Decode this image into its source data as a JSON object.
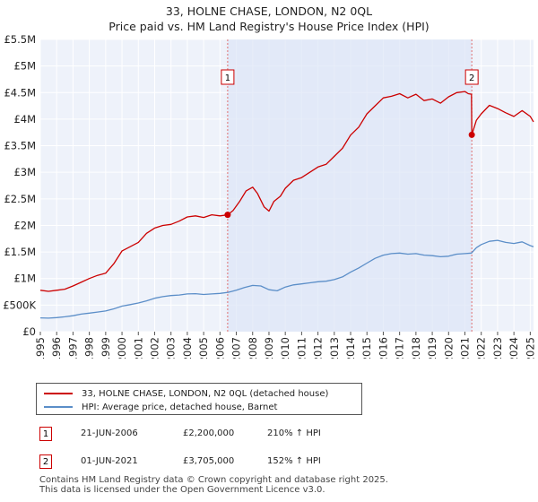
{
  "chart_data": {
    "type": "line",
    "title": "33, HOLNE CHASE, LONDON, N2 0QL",
    "subtitle": "Price paid vs. HM Land Registry's House Price Index (HPI)",
    "xlabel": "",
    "ylabel": "",
    "xlim": [
      1995,
      2025.2
    ],
    "ylim": [
      0,
      5500000
    ],
    "y_ticks": [
      {
        "value": 0,
        "label": "£0"
      },
      {
        "value": 500000,
        "label": "£500K"
      },
      {
        "value": 1000000,
        "label": "£1M"
      },
      {
        "value": 1500000,
        "label": "£1.5M"
      },
      {
        "value": 2000000,
        "label": "£2M"
      },
      {
        "value": 2500000,
        "label": "£2.5M"
      },
      {
        "value": 3000000,
        "label": "£3M"
      },
      {
        "value": 3500000,
        "label": "£3.5M"
      },
      {
        "value": 4000000,
        "label": "£4M"
      },
      {
        "value": 4500000,
        "label": "£4.5M"
      },
      {
        "value": 5000000,
        "label": "£5M"
      },
      {
        "value": 5500000,
        "label": "£5.5M"
      }
    ],
    "x_ticks": [
      "1995",
      "1996",
      "1997",
      "1998",
      "1999",
      "2000",
      "2001",
      "2002",
      "2003",
      "2004",
      "2005",
      "2006",
      "2007",
      "2008",
      "2009",
      "2010",
      "2011",
      "2012",
      "2013",
      "2014",
      "2015",
      "2016",
      "2017",
      "2018",
      "2019",
      "2020",
      "2021",
      "2022",
      "2023",
      "2024",
      "2025"
    ],
    "grid": true,
    "shaded_region": [
      2006.47,
      2021.42
    ],
    "series": [
      {
        "name": "33, HOLNE CHASE, LONDON, N2 0QL (detached house)",
        "color": "#cc0000",
        "x": [
          1995.0,
          1995.5,
          1996.0,
          1996.5,
          1997.0,
          1997.5,
          1998.0,
          1998.5,
          1999.0,
          1999.5,
          2000.0,
          2000.5,
          2001.0,
          2001.5,
          2002.0,
          2002.5,
          2003.0,
          2003.5,
          2004.0,
          2004.5,
          2005.0,
          2005.5,
          2006.0,
          2006.47,
          2006.8,
          2007.2,
          2007.6,
          2008.0,
          2008.3,
          2008.7,
          2009.0,
          2009.3,
          2009.7,
          2010.0,
          2010.5,
          2011.0,
          2011.5,
          2012.0,
          2012.5,
          2013.0,
          2013.5,
          2014.0,
          2014.5,
          2015.0,
          2015.5,
          2016.0,
          2016.5,
          2017.0,
          2017.5,
          2018.0,
          2018.5,
          2019.0,
          2019.5,
          2020.0,
          2020.5,
          2021.0,
          2021.2,
          2021.4,
          2021.42,
          2021.7,
          2022.0,
          2022.5,
          2023.0,
          2023.5,
          2024.0,
          2024.5,
          2025.0,
          2025.2
        ],
        "y": [
          780000,
          760000,
          780000,
          800000,
          860000,
          930000,
          1000000,
          1060000,
          1100000,
          1280000,
          1520000,
          1600000,
          1680000,
          1850000,
          1950000,
          2000000,
          2020000,
          2080000,
          2160000,
          2180000,
          2150000,
          2200000,
          2180000,
          2200000,
          2280000,
          2450000,
          2650000,
          2720000,
          2600000,
          2350000,
          2270000,
          2450000,
          2550000,
          2700000,
          2850000,
          2900000,
          3000000,
          3100000,
          3150000,
          3300000,
          3450000,
          3700000,
          3850000,
          4100000,
          4250000,
          4400000,
          4430000,
          4480000,
          4400000,
          4470000,
          4350000,
          4380000,
          4300000,
          4420000,
          4500000,
          4520000,
          4480000,
          4470000,
          3705000,
          3980000,
          4100000,
          4260000,
          4200000,
          4120000,
          4050000,
          4160000,
          4050000,
          3950000
        ]
      },
      {
        "name": "HPI: Average price, detached house, Barnet",
        "color": "#5b8ec8",
        "x": [
          1995.0,
          1995.5,
          1996.0,
          1996.5,
          1997.0,
          1997.5,
          1998.0,
          1998.5,
          1999.0,
          1999.5,
          2000.0,
          2000.5,
          2001.0,
          2001.5,
          2002.0,
          2002.5,
          2003.0,
          2003.5,
          2004.0,
          2004.5,
          2005.0,
          2005.5,
          2006.0,
          2006.5,
          2007.0,
          2007.5,
          2008.0,
          2008.5,
          2009.0,
          2009.5,
          2010.0,
          2010.5,
          2011.0,
          2011.5,
          2012.0,
          2012.5,
          2013.0,
          2013.5,
          2014.0,
          2014.5,
          2015.0,
          2015.5,
          2016.0,
          2016.5,
          2017.0,
          2017.5,
          2018.0,
          2018.5,
          2019.0,
          2019.5,
          2020.0,
          2020.5,
          2021.0,
          2021.4,
          2021.7,
          2022.0,
          2022.5,
          2023.0,
          2023.5,
          2024.0,
          2024.5,
          2025.0,
          2025.2
        ],
        "y": [
          260000,
          255000,
          265000,
          280000,
          300000,
          330000,
          350000,
          370000,
          390000,
          430000,
          480000,
          510000,
          540000,
          580000,
          630000,
          660000,
          680000,
          690000,
          710000,
          715000,
          700000,
          710000,
          720000,
          740000,
          780000,
          830000,
          870000,
          860000,
          790000,
          770000,
          840000,
          880000,
          900000,
          920000,
          940000,
          950000,
          980000,
          1030000,
          1120000,
          1200000,
          1290000,
          1380000,
          1440000,
          1470000,
          1480000,
          1460000,
          1470000,
          1440000,
          1430000,
          1410000,
          1420000,
          1460000,
          1470000,
          1480000,
          1580000,
          1640000,
          1700000,
          1720000,
          1680000,
          1660000,
          1690000,
          1620000,
          1600000
        ]
      }
    ],
    "sales": [
      {
        "label": "1",
        "x": 2006.47,
        "y": 2200000
      },
      {
        "label": "2",
        "x": 2021.42,
        "y": 3705000
      }
    ]
  },
  "legend": {
    "property_label": "33, HOLNE CHASE, LONDON, N2 0QL (detached house)",
    "hpi_label": "HPI: Average price, detached house, Barnet",
    "property_color": "#cc0000",
    "hpi_color": "#5b8ec8"
  },
  "sales_table": [
    {
      "num": "1",
      "date": "21-JUN-2006",
      "price": "£2,200,000",
      "hpi": "210% ↑ HPI"
    },
    {
      "num": "2",
      "date": "01-JUN-2021",
      "price": "£3,705,000",
      "hpi": "152% ↑ HPI"
    }
  ],
  "footer": {
    "line1": "Contains HM Land Registry data © Crown copyright and database right 2025.",
    "line2": "This data is licensed under the Open Government Licence v3.0."
  }
}
